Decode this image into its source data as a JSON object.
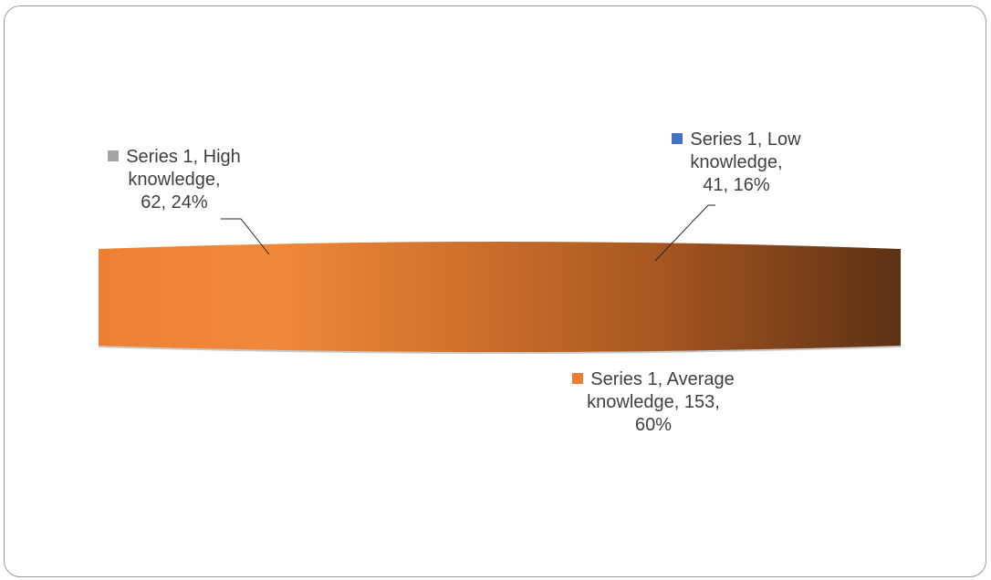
{
  "chart_data": {
    "type": "pie",
    "style": "3d",
    "series_name": "Series 1",
    "categories": [
      "Low knowledge",
      "Average knowledge",
      "High knowledge"
    ],
    "values": [
      41,
      153,
      62
    ],
    "percentages": [
      "16%",
      "60%",
      "24%"
    ],
    "colors": [
      "#4472C4",
      "#ED7D31",
      "#A5A5A5"
    ],
    "data_labels": [
      {
        "category": "Low knowledge",
        "lines": [
          "Series 1, Low",
          "knowledge,",
          "41, 16%"
        ]
      },
      {
        "category": "Average knowledge",
        "lines": [
          "Series 1, Average",
          "knowledge, 153,",
          "60%"
        ]
      },
      {
        "category": "High knowledge",
        "lines": [
          "Series 1, High",
          "knowledge,",
          "62, 24%"
        ]
      }
    ],
    "legend": "none",
    "grid": false
  }
}
